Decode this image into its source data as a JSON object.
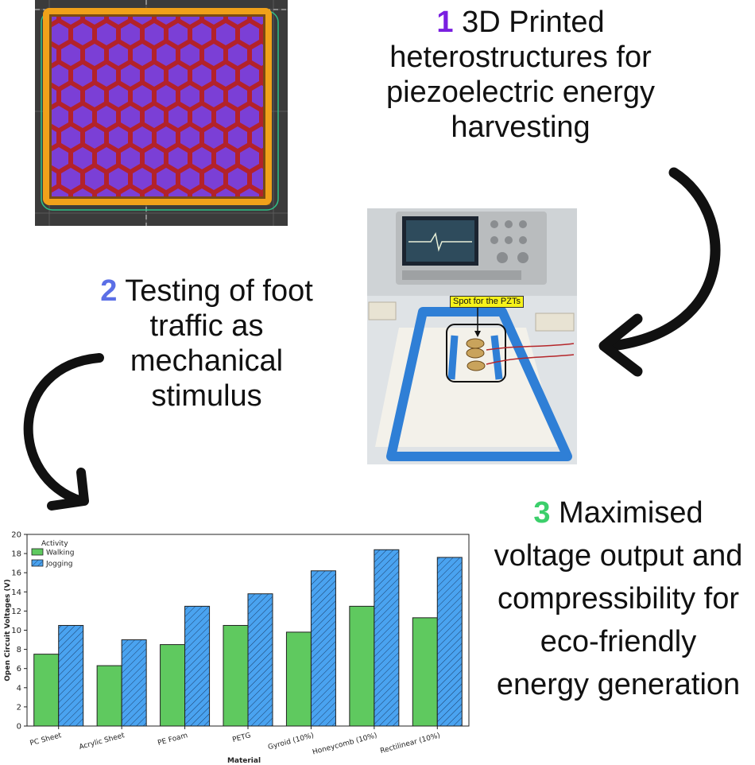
{
  "steps": [
    {
      "number": "1",
      "number_color": "#7a1fe0",
      "lines": [
        "3D Printed",
        "heterostructures for",
        "piezoelectric energy",
        "harvesting"
      ]
    },
    {
      "number": "2",
      "number_color": "#5b6fe6",
      "lines": [
        "Testing of foot",
        "traffic as",
        "mechanical",
        "stimulus"
      ]
    },
    {
      "number": "3",
      "number_color": "#3ccf6b",
      "lines": [
        "Maximised",
        "voltage output and",
        "compressibility for",
        "eco-friendly",
        "energy generation"
      ]
    }
  ],
  "photo": {
    "callout_label": "Spot for the PZTs",
    "callout_color": "#f7f21a"
  },
  "colors": {
    "slicer_background": "#3b3b3b",
    "hex_infill": "#7b3fd6",
    "hex_walls": "#b3222a",
    "perimeter": "#f0a11a",
    "tape": "#2f7fd6",
    "walking": "#5fc95f",
    "jogging": "#4aa3f0"
  },
  "icons": [
    "curved-arrow-icon",
    "curved-arrow-icon"
  ],
  "chart_data": {
    "type": "bar",
    "categories": [
      "PC Sheet",
      "Acrylic Sheet",
      "PE Foam",
      "PETG",
      "Gyroid (10%)",
      "Honeycomb (10%)",
      "Rectilinear (10%)"
    ],
    "series": [
      {
        "name": "Walking",
        "values": [
          7.5,
          6.3,
          8.5,
          10.5,
          9.8,
          12.5,
          11.3
        ]
      },
      {
        "name": "Jogging",
        "values": [
          10.5,
          9.0,
          12.5,
          13.8,
          16.2,
          18.4,
          17.6
        ]
      }
    ],
    "xlabel": "Material",
    "ylabel": "Open Circuit Voltages (V)",
    "ylim": [
      0,
      20
    ],
    "yticks": [
      "0",
      "2",
      "4",
      "6",
      "8",
      "10",
      "12",
      "14",
      "16",
      "18",
      "20"
    ],
    "legend_title": "Activity",
    "legend_position": "top-left",
    "grid": false
  }
}
